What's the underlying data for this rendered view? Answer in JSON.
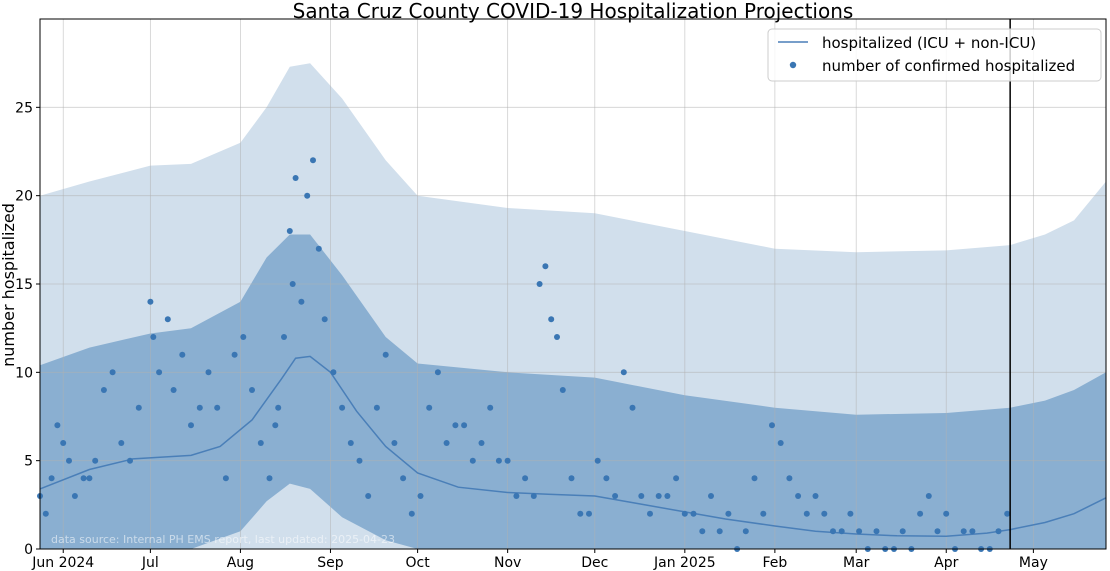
{
  "chart_data": {
    "type": "line",
    "title": "Santa Cruz County COVID-19 Hospitalization Projections",
    "xlabel": "",
    "ylabel": "number hospitalized",
    "xlim": [
      "2024-05-24",
      "2025-05-26"
    ],
    "ylim": [
      0,
      30
    ],
    "yticks": [
      0,
      5,
      10,
      15,
      20,
      25
    ],
    "xticks": [
      {
        "date": "2024-06-01",
        "label": "Jun 2024"
      },
      {
        "date": "2024-07-01",
        "label": "Jul"
      },
      {
        "date": "2024-08-01",
        "label": "Aug"
      },
      {
        "date": "2024-09-01",
        "label": "Sep"
      },
      {
        "date": "2024-10-01",
        "label": "Oct"
      },
      {
        "date": "2024-11-01",
        "label": "Nov"
      },
      {
        "date": "2024-12-01",
        "label": "Dec"
      },
      {
        "date": "2025-01-01",
        "label": "Jan 2025"
      },
      {
        "date": "2025-02-01",
        "label": "Feb"
      },
      {
        "date": "2025-03-01",
        "label": "Mar"
      },
      {
        "date": "2025-04-01",
        "label": "Apr"
      },
      {
        "date": "2025-05-01",
        "label": "May"
      }
    ],
    "grid": true,
    "legend_position": "top-right",
    "colors": {
      "line": "#4a7fb8",
      "points": "#3a76b3",
      "band_inner": "#8aafd1",
      "band_outer": "#d1dfec",
      "vline": "#000000"
    },
    "vline_date": "2025-04-23",
    "series": [
      {
        "name": "hospitalized (ICU + non-ICU)",
        "kind": "line",
        "x": [
          "2024-05-24",
          "2024-06-10",
          "2024-06-25",
          "2024-07-05",
          "2024-07-15",
          "2024-07-25",
          "2024-08-05",
          "2024-08-15",
          "2024-08-20",
          "2024-08-25",
          "2024-09-01",
          "2024-09-10",
          "2024-09-20",
          "2024-10-01",
          "2024-10-15",
          "2024-11-01",
          "2024-11-15",
          "2024-12-01",
          "2024-12-15",
          "2025-01-01",
          "2025-01-15",
          "2025-02-01",
          "2025-02-15",
          "2025-03-01",
          "2025-03-15",
          "2025-04-01",
          "2025-04-15",
          "2025-04-23",
          "2025-05-05",
          "2025-05-15",
          "2025-05-26"
        ],
        "y": [
          3.4,
          4.5,
          5.1,
          5.2,
          5.3,
          5.8,
          7.3,
          9.6,
          10.8,
          10.9,
          10.0,
          7.8,
          5.8,
          4.3,
          3.5,
          3.2,
          3.1,
          3.0,
          2.6,
          2.1,
          1.7,
          1.3,
          1.0,
          0.85,
          0.75,
          0.72,
          0.9,
          1.1,
          1.5,
          2.0,
          2.9
        ]
      },
      {
        "name": "number of confirmed hospitalized",
        "kind": "points",
        "x": [
          "2024-05-24",
          "2024-05-26",
          "2024-05-28",
          "2024-05-30",
          "2024-06-01",
          "2024-06-03",
          "2024-06-05",
          "2024-06-08",
          "2024-06-10",
          "2024-06-12",
          "2024-06-15",
          "2024-06-18",
          "2024-06-21",
          "2024-06-24",
          "2024-06-27",
          "2024-07-01",
          "2024-07-02",
          "2024-07-04",
          "2024-07-07",
          "2024-07-09",
          "2024-07-12",
          "2024-07-15",
          "2024-07-18",
          "2024-07-21",
          "2024-07-24",
          "2024-07-27",
          "2024-07-30",
          "2024-08-02",
          "2024-08-05",
          "2024-08-08",
          "2024-08-11",
          "2024-08-13",
          "2024-08-14",
          "2024-08-16",
          "2024-08-18",
          "2024-08-19",
          "2024-08-20",
          "2024-08-22",
          "2024-08-24",
          "2024-08-26",
          "2024-08-28",
          "2024-08-30",
          "2024-09-02",
          "2024-09-05",
          "2024-09-08",
          "2024-09-11",
          "2024-09-14",
          "2024-09-17",
          "2024-09-20",
          "2024-09-23",
          "2024-09-26",
          "2024-09-29",
          "2024-10-02",
          "2024-10-05",
          "2024-10-08",
          "2024-10-11",
          "2024-10-14",
          "2024-10-17",
          "2024-10-20",
          "2024-10-23",
          "2024-10-26",
          "2024-10-29",
          "2024-11-01",
          "2024-11-04",
          "2024-11-07",
          "2024-11-10",
          "2024-11-12",
          "2024-11-14",
          "2024-11-16",
          "2024-11-18",
          "2024-11-20",
          "2024-11-23",
          "2024-11-26",
          "2024-11-29",
          "2024-12-02",
          "2024-12-05",
          "2024-12-08",
          "2024-12-11",
          "2024-12-14",
          "2024-12-17",
          "2024-12-20",
          "2024-12-23",
          "2024-12-26",
          "2024-12-29",
          "2025-01-01",
          "2025-01-04",
          "2025-01-07",
          "2025-01-10",
          "2025-01-13",
          "2025-01-16",
          "2025-01-19",
          "2025-01-22",
          "2025-01-25",
          "2025-01-28",
          "2025-01-31",
          "2025-02-03",
          "2025-02-06",
          "2025-02-09",
          "2025-02-12",
          "2025-02-15",
          "2025-02-18",
          "2025-02-21",
          "2025-02-24",
          "2025-02-27",
          "2025-03-02",
          "2025-03-05",
          "2025-03-08",
          "2025-03-11",
          "2025-03-14",
          "2025-03-17",
          "2025-03-20",
          "2025-03-23",
          "2025-03-26",
          "2025-03-29",
          "2025-04-01",
          "2025-04-04",
          "2025-04-07",
          "2025-04-10",
          "2025-04-13",
          "2025-04-16",
          "2025-04-19",
          "2025-04-22"
        ],
        "y": [
          3,
          2,
          4,
          7,
          6,
          5,
          3,
          4,
          4,
          5,
          9,
          10,
          6,
          5,
          8,
          14,
          12,
          10,
          13,
          9,
          11,
          7,
          8,
          10,
          8,
          4,
          11,
          12,
          9,
          6,
          4,
          7,
          8,
          12,
          18,
          15,
          21,
          14,
          20,
          22,
          17,
          13,
          10,
          8,
          6,
          5,
          3,
          8,
          11,
          6,
          4,
          2,
          3,
          8,
          10,
          6,
          7,
          7,
          5,
          6,
          8,
          5,
          5,
          3,
          4,
          3,
          15,
          16,
          13,
          12,
          9,
          4,
          2,
          2,
          5,
          4,
          3,
          10,
          8,
          3,
          2,
          3,
          3,
          4,
          2,
          2,
          1,
          3,
          1,
          2,
          0,
          1,
          4,
          2,
          7,
          6,
          4,
          3,
          2,
          3,
          2,
          1,
          1,
          2,
          1,
          0,
          1,
          0,
          0,
          1,
          0,
          2,
          3,
          1,
          2,
          0,
          1,
          1,
          0,
          0,
          1,
          2
        ]
      }
    ],
    "bands": [
      {
        "kind": "outer",
        "x": [
          "2024-05-24",
          "2024-06-10",
          "2024-07-01",
          "2024-07-15",
          "2024-08-01",
          "2024-08-10",
          "2024-08-18",
          "2024-08-25",
          "2024-09-05",
          "2024-09-20",
          "2024-10-01",
          "2024-11-01",
          "2024-12-01",
          "2025-01-01",
          "2025-02-01",
          "2025-03-01",
          "2025-04-01",
          "2025-04-23",
          "2025-05-05",
          "2025-05-15",
          "2025-05-26"
        ],
        "lower": [
          0,
          0,
          0,
          0,
          0,
          0,
          0,
          0,
          0,
          0,
          0,
          0,
          0,
          0,
          0,
          0,
          0,
          0,
          0,
          0,
          0
        ],
        "upper": [
          20,
          20.8,
          21.7,
          21.8,
          23.0,
          25.0,
          27.3,
          27.5,
          25.5,
          22.0,
          20.0,
          19.3,
          19.0,
          18.0,
          17.0,
          16.8,
          16.9,
          17.2,
          17.8,
          18.6,
          20.8
        ]
      },
      {
        "kind": "inner",
        "x": [
          "2024-05-24",
          "2024-06-10",
          "2024-07-01",
          "2024-07-15",
          "2024-08-01",
          "2024-08-10",
          "2024-08-18",
          "2024-08-25",
          "2024-09-05",
          "2024-09-20",
          "2024-10-01",
          "2024-11-01",
          "2024-12-01",
          "2025-01-01",
          "2025-02-01",
          "2025-03-01",
          "2025-04-01",
          "2025-04-23",
          "2025-05-05",
          "2025-05-15",
          "2025-05-26"
        ],
        "lower": [
          0,
          0,
          0,
          0,
          1.0,
          2.7,
          3.7,
          3.4,
          1.8,
          0.5,
          0,
          0,
          0,
          0,
          0,
          0,
          0,
          0,
          0,
          0,
          0
        ],
        "upper": [
          10.4,
          11.4,
          12.2,
          12.5,
          14.0,
          16.5,
          17.8,
          17.8,
          15.5,
          12.0,
          10.5,
          10.0,
          9.7,
          8.7,
          8.0,
          7.6,
          7.7,
          8.0,
          8.4,
          9.0,
          10.0
        ]
      }
    ],
    "annotation": "data source: Internal PH EMS report, last updated: 2025-04-23"
  }
}
